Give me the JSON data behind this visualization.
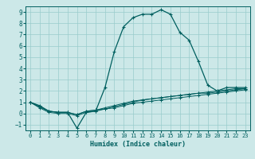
{
  "xlabel": "Humidex (Indice chaleur)",
  "xlim": [
    -0.5,
    23.5
  ],
  "ylim": [
    -1.5,
    9.5
  ],
  "yticks": [
    -1,
    0,
    1,
    2,
    3,
    4,
    5,
    6,
    7,
    8,
    9
  ],
  "xticks": [
    0,
    1,
    2,
    3,
    4,
    5,
    6,
    7,
    8,
    9,
    10,
    11,
    12,
    13,
    14,
    15,
    16,
    17,
    18,
    19,
    20,
    21,
    22,
    23
  ],
  "background_color": "#cce8e8",
  "grid_color": "#99cccc",
  "line_color": "#005f5f",
  "series": [
    [
      1.0,
      0.7,
      0.2,
      0.1,
      0.1,
      -1.3,
      0.1,
      0.2,
      2.3,
      5.5,
      7.7,
      8.5,
      8.8,
      8.8,
      9.2,
      8.8,
      7.2,
      6.5,
      4.6,
      2.5,
      2.0,
      2.3,
      2.3,
      2.3
    ],
    [
      1.0,
      0.6,
      0.2,
      0.1,
      0.1,
      -0.1,
      0.2,
      0.3,
      0.4,
      0.6,
      0.8,
      1.0,
      1.2,
      1.3,
      1.4,
      1.5,
      1.6,
      1.7,
      1.8,
      1.8,
      1.9,
      2.0,
      2.1,
      2.2
    ],
    [
      1.0,
      0.5,
      0.1,
      0.0,
      0.0,
      -0.2,
      0.1,
      0.2,
      0.4,
      0.5,
      0.7,
      0.9,
      1.0,
      1.1,
      1.2,
      1.3,
      1.4,
      1.5,
      1.6,
      1.7,
      1.8,
      1.9,
      2.0,
      2.1
    ],
    [
      1.0,
      0.6,
      0.2,
      0.1,
      0.1,
      -0.1,
      0.2,
      0.3,
      0.5,
      0.7,
      0.9,
      1.1,
      1.2,
      1.3,
      1.4,
      1.5,
      1.6,
      1.7,
      1.8,
      1.9,
      2.0,
      2.1,
      2.2,
      2.2
    ]
  ],
  "marker_size": 3,
  "lw_main": 0.9,
  "lw_sub": 0.7
}
